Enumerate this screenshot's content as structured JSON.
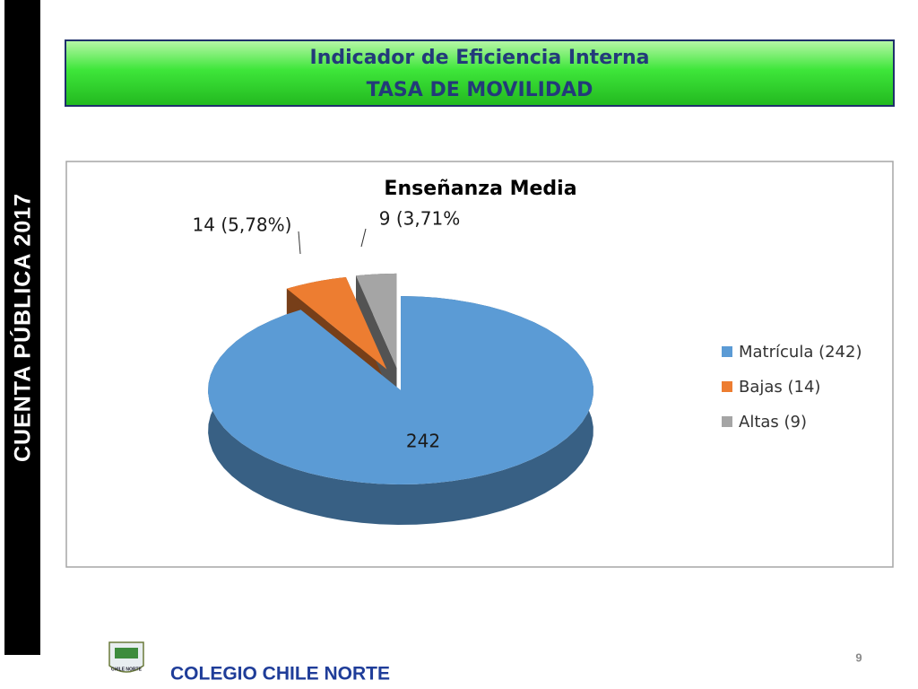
{
  "sidebar": {
    "text": "CUENTA PÚBLICA 2017"
  },
  "header": {
    "title": "Indicador de Eficiencia Interna",
    "subtitle": "TASA DE MOVILIDAD"
  },
  "chart_data": {
    "type": "pie",
    "title": "Enseñanza Media",
    "categories": [
      "Matrícula (242)",
      "Bajas (14)",
      "Altas (9)"
    ],
    "values": [
      242,
      14,
      9
    ],
    "value_labels": [
      "242",
      "14 (5,78%)",
      "9 (3,71%"
    ],
    "colors": [
      "#5b9bd5",
      "#ed7d31",
      "#a5a5a5"
    ],
    "legend": "right"
  },
  "footer": {
    "logo_text": "CHILE NORTE",
    "school": "COLEGIO CHILE NORTE",
    "page": "9"
  }
}
